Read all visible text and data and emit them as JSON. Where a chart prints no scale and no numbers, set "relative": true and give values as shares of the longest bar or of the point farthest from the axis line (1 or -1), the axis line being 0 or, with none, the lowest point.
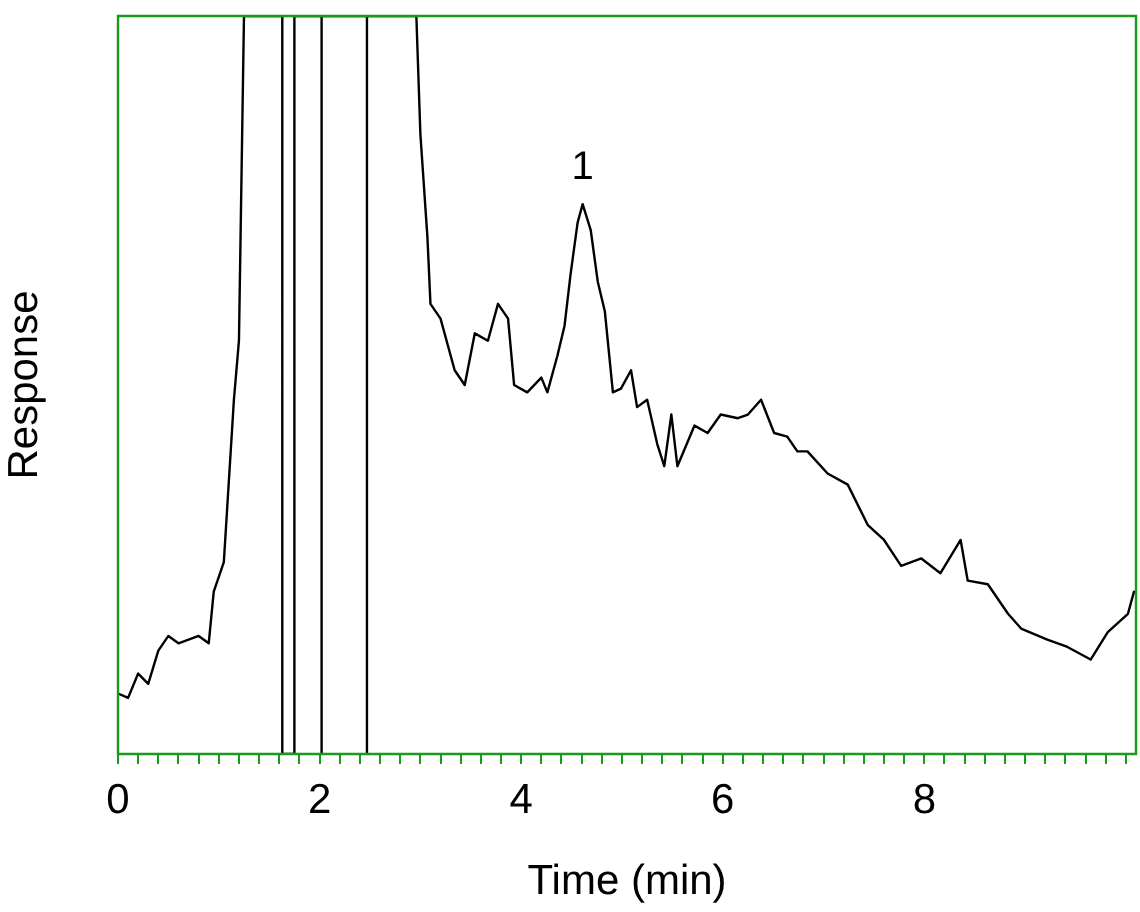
{
  "chart_data": {
    "type": "line",
    "xlabel": "Time (min)",
    "ylabel": "Response",
    "relative": true,
    "grid": false,
    "legend": false,
    "marker": "none",
    "line_style": "solid",
    "xlim": [
      0,
      10.1
    ],
    "xticks": [
      0,
      {
        "value": 0.2,
        "label": null
      },
      {
        "value": 0.4,
        "label": null
      },
      {
        "value": 0.6,
        "label": null
      },
      {
        "value": 0.8,
        "label": null
      },
      {
        "value": 1,
        "label": null
      },
      {
        "value": 1.2,
        "label": null
      },
      {
        "value": 1.4,
        "label": null
      },
      {
        "value": 1.6,
        "label": null
      },
      {
        "value": 1.8,
        "label": null
      },
      2,
      {
        "value": 2.2,
        "label": null
      },
      {
        "value": 2.4,
        "label": null
      },
      {
        "value": 2.6,
        "label": null
      },
      {
        "value": 2.8,
        "label": null
      },
      {
        "value": 3,
        "label": null
      },
      {
        "value": 3.2,
        "label": null
      },
      {
        "value": 3.4,
        "label": null
      },
      {
        "value": 3.6,
        "label": null
      },
      {
        "value": 3.8,
        "label": null
      },
      4,
      {
        "value": 4.2,
        "label": null
      },
      {
        "value": 4.4,
        "label": null
      },
      {
        "value": 4.6,
        "label": null
      },
      {
        "value": 4.8,
        "label": null
      },
      {
        "value": 5,
        "label": null
      },
      {
        "value": 5.2,
        "label": null
      },
      {
        "value": 5.4,
        "label": null
      },
      {
        "value": 5.6,
        "label": null
      },
      {
        "value": 5.8,
        "label": null
      },
      6,
      {
        "value": 6.2,
        "label": null
      },
      {
        "value": 6.4,
        "label": null
      },
      {
        "value": 6.6,
        "label": null
      },
      {
        "value": 6.8,
        "label": null
      },
      {
        "value": 7,
        "label": null
      },
      {
        "value": 7.2,
        "label": null
      },
      {
        "value": 7.4,
        "label": null
      },
      {
        "value": 7.6,
        "label": null
      },
      {
        "value": 7.8,
        "label": null
      },
      8,
      {
        "value": 8.2,
        "label": null
      },
      {
        "value": 8.4,
        "label": null
      },
      {
        "value": 8.6,
        "label": null
      },
      {
        "value": 8.8,
        "label": null
      },
      {
        "value": 9,
        "label": null
      },
      {
        "value": 9.2,
        "label": null
      },
      {
        "value": 9.4,
        "label": null
      },
      {
        "value": 9.6,
        "label": null
      },
      {
        "value": 9.8,
        "label": null
      },
      {
        "value": 10,
        "label": null
      }
    ],
    "annotations": [
      {
        "text": "1",
        "x": 4.61,
        "y": 0.745
      }
    ],
    "series": [
      {
        "color": "#000000",
        "x": [
          0,
          0.1,
          0.2,
          0.3,
          0.4,
          0.5,
          0.6,
          0.7,
          0.8,
          0.9,
          0.95,
          1.05,
          1.15,
          1.2,
          1.25,
          1.63,
          1.63,
          1.75,
          1.75,
          2.02,
          2.02,
          2.02,
          2.47,
          2.47,
          2.47,
          2.96,
          3.0,
          3.07,
          3.1,
          3.2,
          3.34,
          3.44,
          3.54,
          3.67,
          3.77,
          3.87,
          3.93,
          4.06,
          4.2,
          4.26,
          4.36,
          4.43,
          4.49,
          4.56,
          4.61,
          4.69,
          4.76,
          4.83,
          4.91,
          4.99,
          5.09,
          5.15,
          5.25,
          5.35,
          5.42,
          5.49,
          5.55,
          5.72,
          5.85,
          5.98,
          6.15,
          6.25,
          6.38,
          6.51,
          6.64,
          6.74,
          6.84,
          7.04,
          7.24,
          7.44,
          7.6,
          7.77,
          7.97,
          8.16,
          8.36,
          8.43,
          8.63,
          8.83,
          8.96,
          9.22,
          9.42,
          9.65,
          9.82,
          10.02,
          10.08
        ],
        "values": [
          0.082,
          0.076,
          0.109,
          0.095,
          0.14,
          0.16,
          0.15,
          0.155,
          0.16,
          0.15,
          0.22,
          0.26,
          0.48,
          0.56,
          1,
          1,
          0,
          0,
          1,
          1,
          0,
          1,
          1,
          0,
          1,
          1,
          0.84,
          0.7,
          0.61,
          0.59,
          0.52,
          0.5,
          0.57,
          0.56,
          0.61,
          0.59,
          0.5,
          0.49,
          0.51,
          0.49,
          0.54,
          0.58,
          0.65,
          0.72,
          0.745,
          0.71,
          0.64,
          0.6,
          0.49,
          0.495,
          0.52,
          0.47,
          0.48,
          0.42,
          0.39,
          0.46,
          0.39,
          0.445,
          0.435,
          0.46,
          0.455,
          0.46,
          0.48,
          0.435,
          0.43,
          0.41,
          0.41,
          0.38,
          0.365,
          0.31,
          0.29,
          0.255,
          0.265,
          0.245,
          0.29,
          0.235,
          0.23,
          0.19,
          0.17,
          0.155,
          0.145,
          0.128,
          0.165,
          0.19,
          0.22
        ]
      }
    ]
  }
}
